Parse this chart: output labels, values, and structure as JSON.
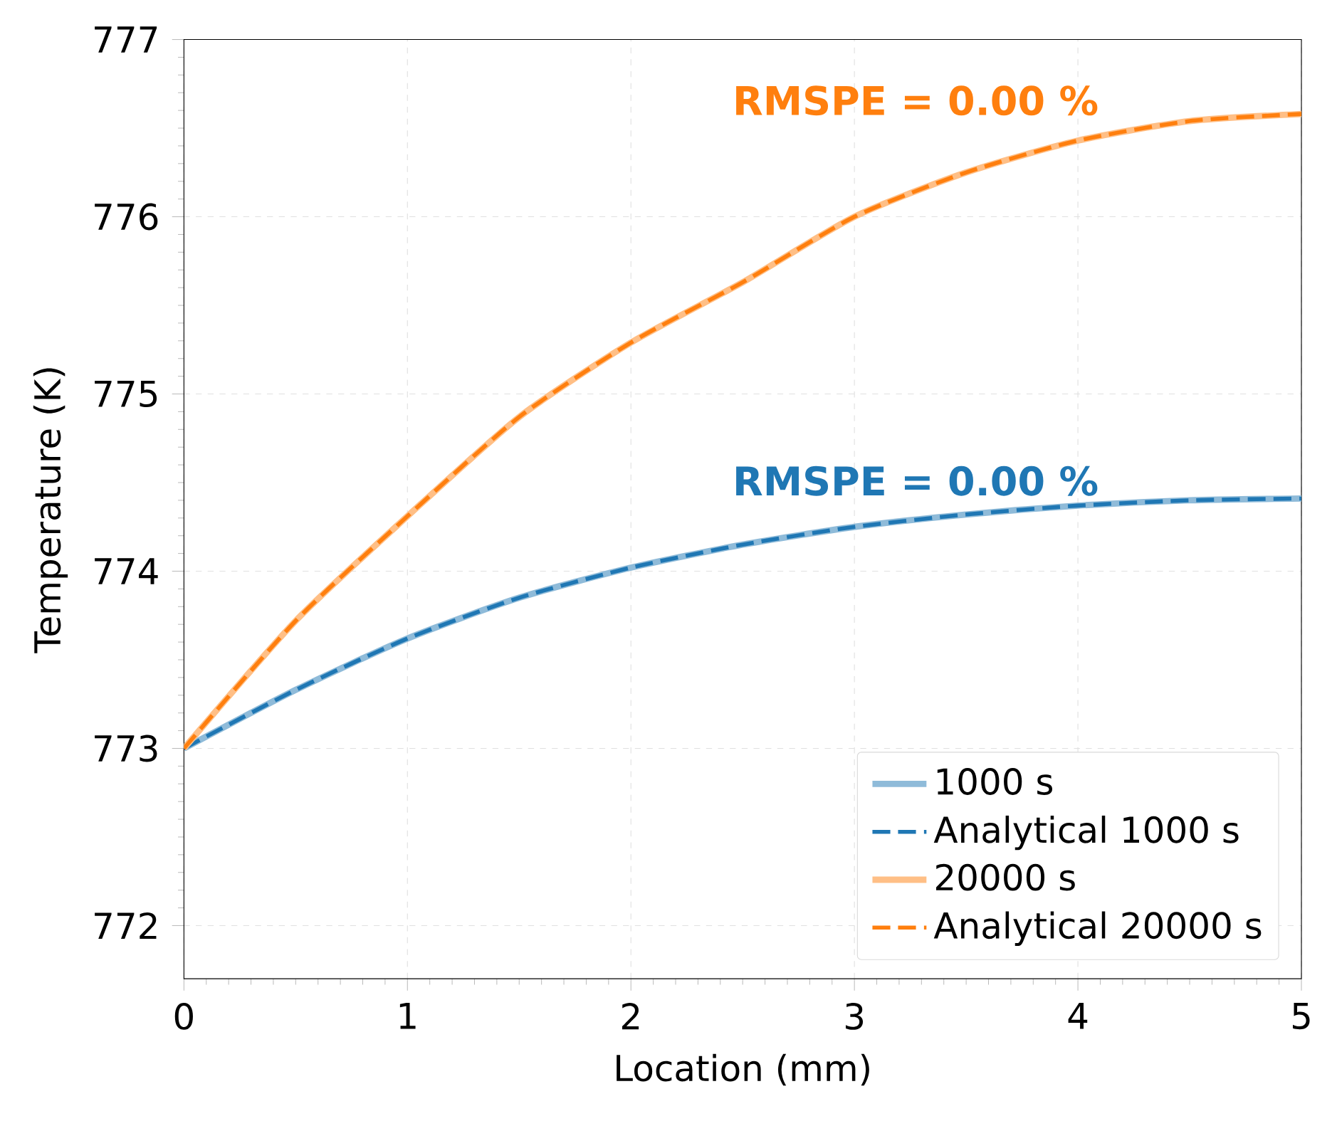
{
  "chart_data": {
    "type": "line",
    "xlabel": "Location (mm)",
    "ylabel": "Temperature (K)",
    "xlim": [
      0,
      5
    ],
    "ylim": [
      771.7,
      777
    ],
    "xticks": [
      0,
      1,
      2,
      3,
      4,
      5
    ],
    "yticks": [
      772,
      773,
      774,
      775,
      776,
      777
    ],
    "x": [
      0,
      0.5,
      1,
      1.5,
      2,
      2.5,
      3,
      3.5,
      4,
      4.5,
      5
    ],
    "series": [
      {
        "name": "1000 s",
        "color": "#8fbbd9",
        "line_style": "solid",
        "values": [
          773,
          773.33,
          773.62,
          773.85,
          774.02,
          774.15,
          774.25,
          774.32,
          774.37,
          774.4,
          774.41
        ]
      },
      {
        "name": "Analytical 1000 s",
        "color": "#1f77b4",
        "line_style": "dashed",
        "values": [
          773,
          773.33,
          773.62,
          773.85,
          774.02,
          774.15,
          774.25,
          774.32,
          774.37,
          774.4,
          774.41
        ]
      },
      {
        "name": "20000 s",
        "color": "#ffbf86",
        "line_style": "solid",
        "values": [
          773,
          773.72,
          774.31,
          774.87,
          775.29,
          775.63,
          776.0,
          776.25,
          776.43,
          776.54,
          776.58
        ]
      },
      {
        "name": "Analytical 20000 s",
        "color": "#ff7f0e",
        "line_style": "dashed",
        "values": [
          773,
          773.72,
          774.31,
          774.87,
          775.29,
          775.63,
          776.0,
          776.25,
          776.43,
          776.54,
          776.58
        ]
      }
    ],
    "annotations": [
      "RMSPE = 0.00 %",
      "RMSPE = 0.00 %"
    ],
    "grid": true,
    "legend": "bottom right"
  }
}
